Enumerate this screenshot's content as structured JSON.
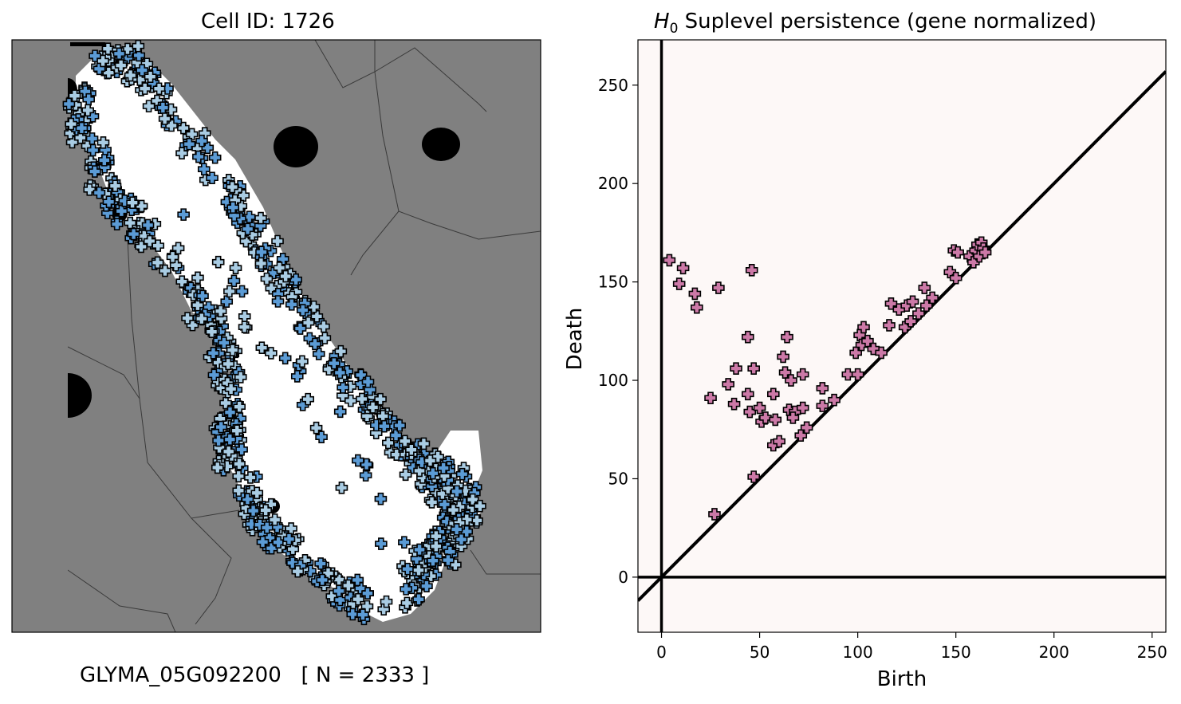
{
  "left_panel": {
    "title": "Cell ID: 1726",
    "gene_caption": "GLYMA_05G092200   [ N = 2333 ]",
    "colors": {
      "background": "#808080",
      "cell": "#ffffff",
      "nuclei": "#000000",
      "marker": "#5b9bd5",
      "marker_light": "#a9cce3"
    }
  },
  "right_panel": {
    "title_italic": "H",
    "title_sub": "0",
    "title_rest": " Suplevel persistence (gene normalized)",
    "colors": {
      "background": "#fdf8f7",
      "marker": "#cc79a7"
    }
  },
  "chart_data": {
    "type": "scatter",
    "title": "H0 Suplevel persistence (gene normalized)",
    "xlabel": "Birth",
    "ylabel": "Death",
    "xlim": [
      -12,
      257
    ],
    "ylim": [
      -28,
      273
    ],
    "xticks": [
      0,
      50,
      100,
      150,
      200,
      250
    ],
    "yticks": [
      0,
      50,
      100,
      150,
      200,
      250
    ],
    "grid": false,
    "diagonal": true,
    "points": [
      [
        4,
        161
      ],
      [
        11,
        157
      ],
      [
        9,
        149
      ],
      [
        17,
        144
      ],
      [
        18,
        137
      ],
      [
        29,
        147
      ],
      [
        46,
        156
      ],
      [
        25,
        91
      ],
      [
        44,
        122
      ],
      [
        38,
        106
      ],
      [
        47,
        106
      ],
      [
        34,
        98
      ],
      [
        44,
        93
      ],
      [
        37,
        88
      ],
      [
        45,
        84
      ],
      [
        50,
        86
      ],
      [
        51,
        79
      ],
      [
        53,
        81
      ],
      [
        57,
        93
      ],
      [
        58,
        80
      ],
      [
        57,
        67
      ],
      [
        60,
        69
      ],
      [
        62,
        112
      ],
      [
        63,
        104
      ],
      [
        64,
        122
      ],
      [
        66,
        100
      ],
      [
        65,
        85
      ],
      [
        68,
        84
      ],
      [
        67,
        81
      ],
      [
        72,
        103
      ],
      [
        72,
        86
      ],
      [
        71,
        72
      ],
      [
        74,
        76
      ],
      [
        82,
        96
      ],
      [
        82,
        87
      ],
      [
        88,
        90
      ],
      [
        47,
        51
      ],
      [
        27,
        32
      ],
      [
        95,
        103
      ],
      [
        100,
        103
      ],
      [
        99,
        114
      ],
      [
        101,
        123
      ],
      [
        103,
        127
      ],
      [
        102,
        118
      ],
      [
        105,
        120
      ],
      [
        108,
        116
      ],
      [
        112,
        114
      ],
      [
        117,
        139
      ],
      [
        116,
        128
      ],
      [
        121,
        136
      ],
      [
        124,
        127
      ],
      [
        125,
        138
      ],
      [
        128,
        140
      ],
      [
        127,
        130
      ],
      [
        131,
        134
      ],
      [
        134,
        147
      ],
      [
        135,
        138
      ],
      [
        138,
        142
      ],
      [
        147,
        155
      ],
      [
        150,
        152
      ],
      [
        149,
        166
      ],
      [
        151,
        165
      ],
      [
        157,
        163
      ],
      [
        159,
        160
      ],
      [
        160,
        166
      ],
      [
        161,
        169
      ],
      [
        163,
        170
      ],
      [
        162,
        163
      ],
      [
        164,
        167
      ],
      [
        165,
        165
      ]
    ]
  }
}
